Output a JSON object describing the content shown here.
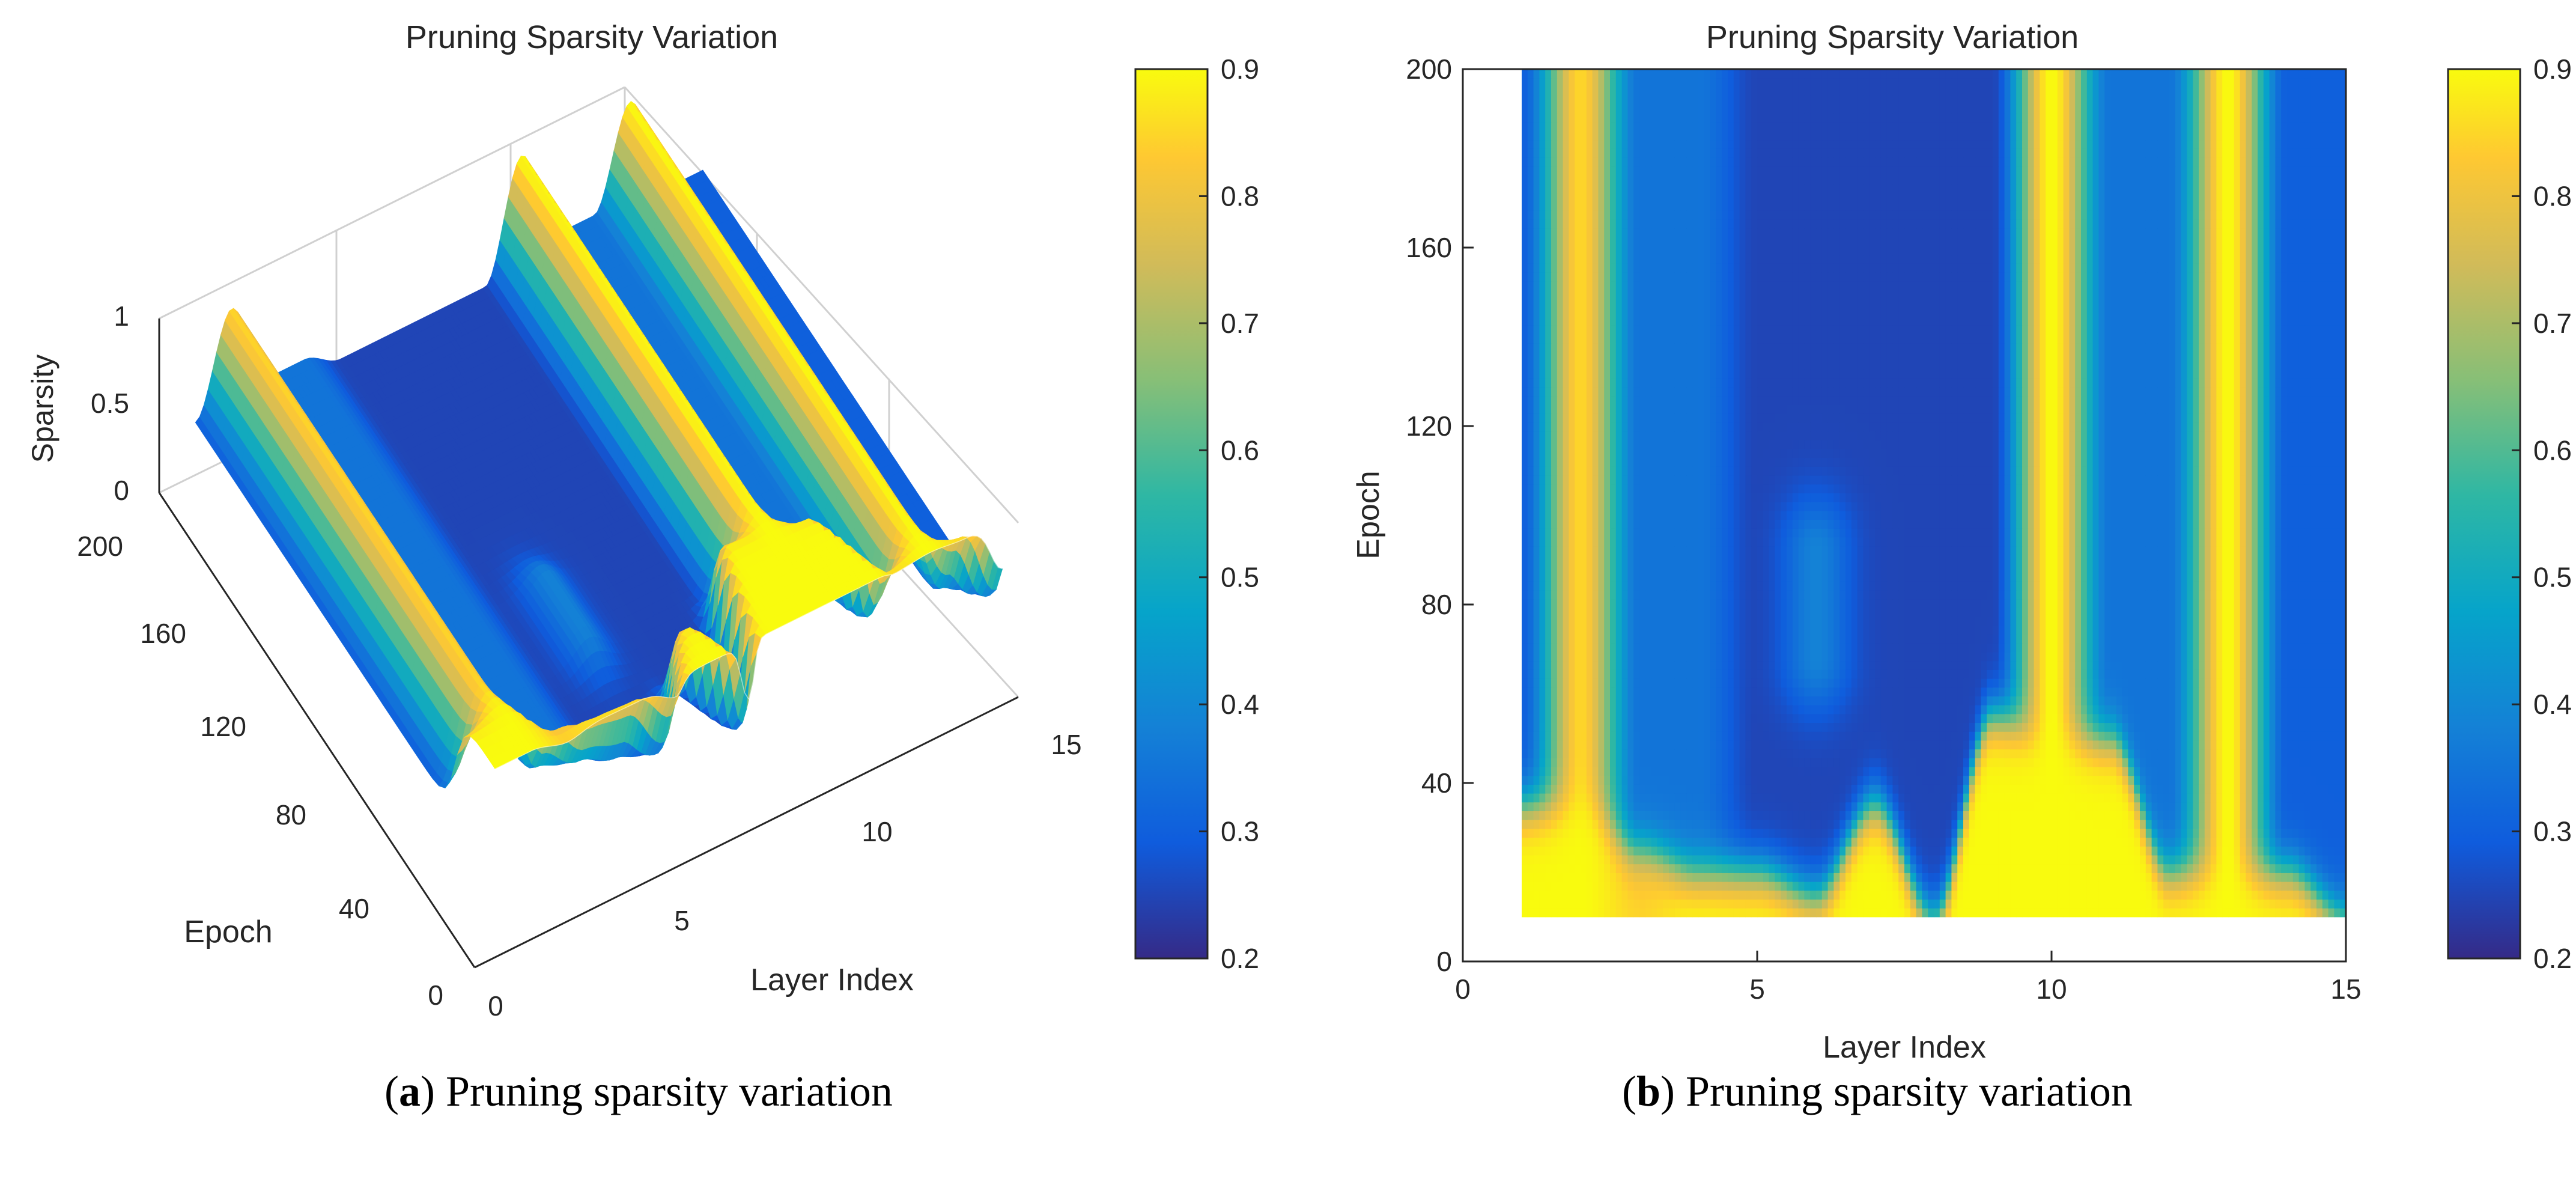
{
  "chart_data": [
    {
      "type": "surface3d",
      "title": "Pruning Sparsity Variation",
      "xlabel": "Layer Index",
      "ylabel": "Epoch",
      "zlabel": "Sparsity",
      "xlim": [
        0,
        15
      ],
      "ylim": [
        0,
        200
      ],
      "zlim": [
        0,
        1
      ],
      "xticks": [
        "0",
        "5",
        "10",
        "15"
      ],
      "yticks": [
        "0",
        "40",
        "80",
        "120",
        "160",
        "200"
      ],
      "zticks": [
        "0",
        "0.5",
        "1"
      ],
      "colorbar": {
        "min": 0.2,
        "max": 0.9,
        "ticks": [
          "0.2",
          "0.3",
          "0.4",
          "0.5",
          "0.6",
          "0.7",
          "0.8",
          "0.9"
        ]
      },
      "caption_letter": "a",
      "caption_text": " Pruning sparsity variation"
    },
    {
      "type": "heatmap",
      "title": "Pruning Sparsity Variation",
      "xlabel": "Layer Index",
      "ylabel": "Epoch",
      "xlim": [
        0,
        15
      ],
      "ylim": [
        0,
        200
      ],
      "xticks": [
        "0",
        "5",
        "10",
        "15"
      ],
      "yticks": [
        "0",
        "40",
        "80",
        "120",
        "160",
        "200"
      ],
      "colorbar": {
        "min": 0.2,
        "max": 0.9,
        "ticks": [
          "0.2",
          "0.3",
          "0.4",
          "0.5",
          "0.6",
          "0.7",
          "0.8",
          "0.9"
        ]
      },
      "layers": [
        1,
        2,
        3,
        4,
        5,
        6,
        7,
        8,
        9,
        10,
        11,
        12,
        13,
        14,
        15
      ],
      "late_epoch_sparsity": [
        0.3,
        0.85,
        0.35,
        0.35,
        0.25,
        0.25,
        0.25,
        0.25,
        0.25,
        0.9,
        0.35,
        0.35,
        0.9,
        0.3,
        0.3
      ],
      "early_epoch_sparsity": [
        0.9,
        0.9,
        0.85,
        0.9,
        0.9,
        0.9,
        0.9,
        0.9,
        0.9,
        0.9,
        0.9,
        0.9,
        0.9,
        0.9,
        0.9
      ],
      "transition_epoch": [
        35,
        35,
        25,
        20,
        20,
        15,
        35,
        10,
        55,
        50,
        50,
        20,
        20,
        20,
        10
      ],
      "bump": {
        "layer": 6,
        "epoch_range": [
          60,
          100
        ],
        "sparsity": 0.4
      },
      "caption_letter": "b",
      "caption_text": " Pruning sparsity variation"
    }
  ]
}
